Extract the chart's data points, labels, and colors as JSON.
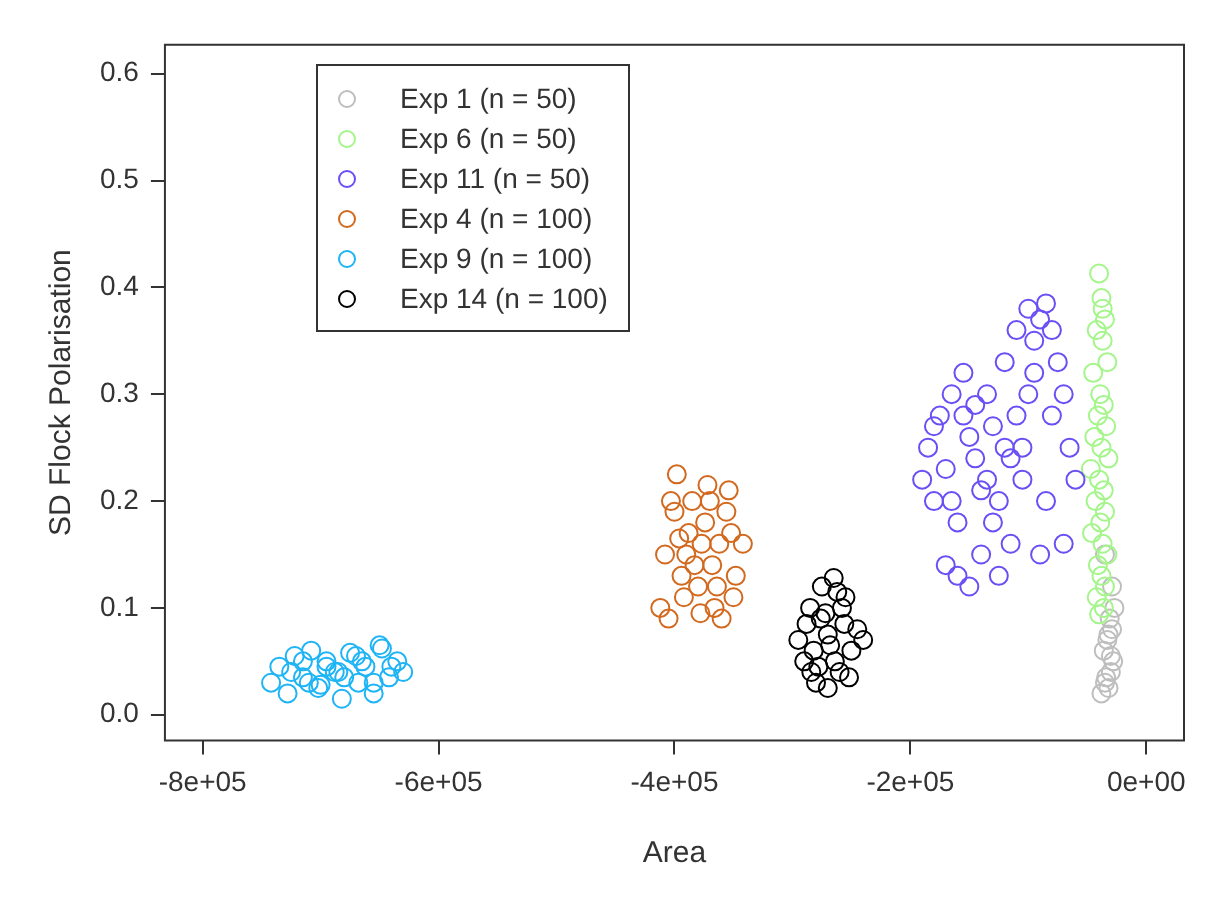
{
  "chart_data": {
    "type": "scatter",
    "xlabel": "Area",
    "ylabel": "SD Flock Polarisation",
    "xlim": [
      -832000,
      32000
    ],
    "ylim": [
      -0.024,
      0.627
    ],
    "xticks": [
      {
        "value": -800000,
        "label": "-8e+05"
      },
      {
        "value": -600000,
        "label": "-6e+05"
      },
      {
        "value": -400000,
        "label": "-4e+05"
      },
      {
        "value": -200000,
        "label": "-2e+05"
      },
      {
        "value": 0,
        "label": "0e+00"
      }
    ],
    "yticks": [
      {
        "value": 0,
        "label": "0.0"
      },
      {
        "value": 0.1,
        "label": "0.1"
      },
      {
        "value": 0.2,
        "label": "0.2"
      },
      {
        "value": 0.3,
        "label": "0.3"
      },
      {
        "value": 0.4,
        "label": "0.4"
      },
      {
        "value": 0.5,
        "label": "0.5"
      },
      {
        "value": 0.6,
        "label": "0.6"
      }
    ],
    "grid": false,
    "legend": "top left",
    "marker": "circle",
    "series": [
      {
        "name": "Exp 1 (n = 50)",
        "color": "#bebebe",
        "x": [
          -38000,
          -35000,
          -32000,
          -30000,
          -28000,
          -36000,
          -33000,
          -29000,
          -31000,
          -27000,
          -34000,
          -30000,
          -32000,
          -29000,
          -35000
        ],
        "values": [
          0.02,
          0.03,
          0.025,
          0.04,
          0.05,
          0.06,
          0.07,
          0.08,
          0.09,
          0.1,
          0.035,
          0.055,
          0.075,
          0.12,
          0.15
        ]
      },
      {
        "name": "Exp 6 (n = 50)",
        "color": "#a4f58a",
        "x": [
          -40000,
          -38000,
          -35000,
          -42000,
          -37000,
          -33000,
          -45000,
          -39000,
          -36000,
          -41000,
          -34000,
          -44000,
          -38000,
          -32000,
          -47000,
          -40000,
          -36000,
          -43000,
          -35000,
          -39000,
          -46000,
          -37000,
          -33000,
          -41000,
          -38000,
          -35000,
          -42000,
          -36000,
          -40000,
          -37000
        ],
        "values": [
          0.413,
          0.39,
          0.37,
          0.36,
          0.35,
          0.33,
          0.32,
          0.3,
          0.29,
          0.28,
          0.27,
          0.26,
          0.25,
          0.24,
          0.23,
          0.22,
          0.21,
          0.2,
          0.19,
          0.18,
          0.17,
          0.16,
          0.15,
          0.14,
          0.13,
          0.12,
          0.11,
          0.1,
          0.094,
          0.38
        ]
      },
      {
        "name": "Exp 11 (n = 50)",
        "color": "#6a4ff5",
        "x": [
          -190000,
          -185000,
          -180000,
          -175000,
          -170000,
          -165000,
          -160000,
          -155000,
          -150000,
          -145000,
          -140000,
          -135000,
          -130000,
          -125000,
          -120000,
          -115000,
          -110000,
          -105000,
          -100000,
          -95000,
          -90000,
          -85000,
          -80000,
          -75000,
          -70000,
          -65000,
          -60000,
          -180000,
          -170000,
          -160000,
          -150000,
          -140000,
          -130000,
          -120000,
          -110000,
          -100000,
          -90000,
          -80000,
          -70000,
          -165000,
          -145000,
          -125000,
          -105000,
          -85000,
          -95000,
          -115000,
          -135000,
          -155000
        ],
        "values": [
          0.22,
          0.25,
          0.2,
          0.28,
          0.14,
          0.3,
          0.13,
          0.32,
          0.12,
          0.24,
          0.15,
          0.3,
          0.18,
          0.2,
          0.33,
          0.16,
          0.36,
          0.22,
          0.38,
          0.35,
          0.37,
          0.385,
          0.36,
          0.33,
          0.3,
          0.25,
          0.22,
          0.27,
          0.23,
          0.18,
          0.26,
          0.21,
          0.27,
          0.25,
          0.28,
          0.3,
          0.15,
          0.28,
          0.16,
          0.2,
          0.29,
          0.13,
          0.25,
          0.2,
          0.32,
          0.24,
          0.22,
          0.28
        ]
      },
      {
        "name": "Exp 4 (n = 100)",
        "color": "#d2691e",
        "x": [
          -412000,
          -405000,
          -398000,
          -392000,
          -385000,
          -378000,
          -372000,
          -366000,
          -360000,
          -354000,
          -348000,
          -342000,
          -408000,
          -400000,
          -394000,
          -388000,
          -380000,
          -374000,
          -368000,
          -362000,
          -356000,
          -350000,
          -403000,
          -390000,
          -377000,
          -364000,
          -352000,
          -396000,
          -383000,
          -370000
        ],
        "values": [
          0.1,
          0.09,
          0.225,
          0.11,
          0.2,
          0.095,
          0.215,
          0.1,
          0.09,
          0.21,
          0.13,
          0.16,
          0.15,
          0.19,
          0.13,
          0.17,
          0.12,
          0.18,
          0.14,
          0.16,
          0.19,
          0.11,
          0.2,
          0.15,
          0.16,
          0.12,
          0.17,
          0.165,
          0.14,
          0.2
        ]
      },
      {
        "name": "Exp 9 (n = 100)",
        "color": "#1eb4f5",
        "x": [
          -742000,
          -735000,
          -728000,
          -722000,
          -715000,
          -708000,
          -702000,
          -695000,
          -688000,
          -682000,
          -675000,
          -668000,
          -662000,
          -655000,
          -648000,
          -642000,
          -635000,
          -630000,
          -725000,
          -710000,
          -695000,
          -680000,
          -665000,
          -650000,
          -715000,
          -700000,
          -685000,
          -670000,
          -655000,
          -640000
        ],
        "values": [
          0.03,
          0.045,
          0.02,
          0.055,
          0.035,
          0.06,
          0.025,
          0.05,
          0.04,
          0.015,
          0.058,
          0.03,
          0.045,
          0.02,
          0.062,
          0.035,
          0.05,
          0.04,
          0.04,
          0.03,
          0.045,
          0.035,
          0.05,
          0.065,
          0.05,
          0.028,
          0.04,
          0.055,
          0.03,
          0.045
        ]
      },
      {
        "name": "Exp 14 (n = 100)",
        "color": "#000000",
        "x": [
          -295000,
          -290000,
          -285000,
          -280000,
          -275000,
          -270000,
          -265000,
          -260000,
          -255000,
          -250000,
          -245000,
          -240000,
          -288000,
          -282000,
          -276000,
          -270000,
          -264000,
          -258000,
          -252000,
          -278000,
          -268000,
          -262000,
          -272000,
          -284000,
          -256000
        ],
        "values": [
          0.07,
          0.05,
          0.1,
          0.03,
          0.12,
          0.025,
          0.128,
          0.04,
          0.11,
          0.06,
          0.08,
          0.07,
          0.085,
          0.06,
          0.09,
          0.075,
          0.05,
          0.1,
          0.035,
          0.045,
          0.065,
          0.115,
          0.095,
          0.04,
          0.085
        ]
      }
    ]
  }
}
